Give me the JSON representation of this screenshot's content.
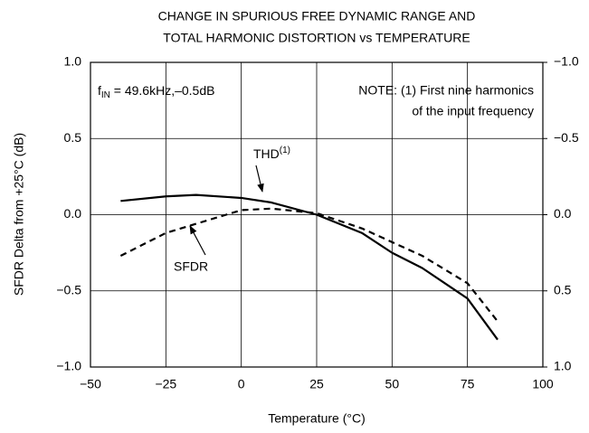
{
  "chart_data": {
    "type": "line",
    "title": [
      "CHANGE IN SPURIOUS FREE DYNAMIC RANGE AND",
      "TOTAL HARMONIC DISTORTION vs TEMPERATURE"
    ],
    "x_label": "Temperature (°C)",
    "y_label": "SFDR Delta from +25°C (dB)",
    "x": [
      -40,
      -25,
      -15,
      0,
      10,
      25,
      40,
      50,
      60,
      75,
      85
    ],
    "series": [
      {
        "name": "THD",
        "superscript": "(1)",
        "color": "#000000",
        "dash": "solid",
        "axis": "y2",
        "values": [
          -0.09,
          -0.12,
          -0.13,
          -0.11,
          -0.08,
          0.0,
          0.12,
          0.25,
          0.35,
          0.55,
          0.82
        ]
      },
      {
        "name": "SFDR",
        "color": "#000000",
        "dash": "dashed",
        "values": [
          -0.27,
          -0.12,
          -0.06,
          0.03,
          0.04,
          0.01,
          -0.09,
          -0.18,
          -0.27,
          -0.45,
          -0.7
        ]
      }
    ],
    "xlim": [
      -50,
      100
    ],
    "xticks": [
      {
        "value": -50,
        "label": "−50"
      },
      {
        "value": -25,
        "label": "−25"
      },
      0,
      25,
      50,
      75,
      100
    ],
    "ylim": [
      -1,
      1
    ],
    "yticks": [
      {
        "value": -1,
        "label": "−1.0"
      },
      {
        "value": -0.5,
        "label": "−0.5"
      },
      {
        "value": 0,
        "label": "0.0"
      },
      {
        "value": 0.5,
        "label": "0.5"
      },
      {
        "value": 1,
        "label": "1.0"
      }
    ],
    "y2lim": [
      1,
      -1
    ],
    "y2ticks": [
      {
        "value": 1,
        "label": "1.0"
      },
      {
        "value": 0.5,
        "label": "0.5"
      },
      {
        "value": 0,
        "label": "0.0"
      },
      {
        "value": -0.5,
        "label": "−0.5"
      },
      {
        "value": -1,
        "label": "−1.0"
      }
    ],
    "grid": true,
    "annotations": {
      "fin": {
        "base": "f",
        "sub": "IN",
        "rest": " = 49.6kHz,–0.5dB"
      },
      "note": [
        "NOTE: (1) First nine harmonics",
        "of the input frequency"
      ]
    }
  }
}
